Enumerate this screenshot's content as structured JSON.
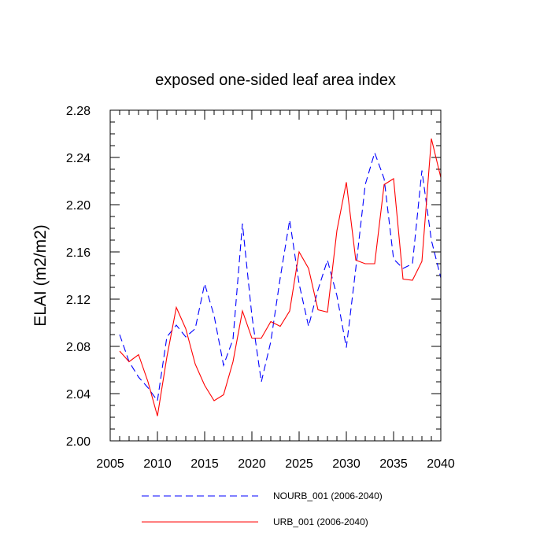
{
  "chart_data": {
    "type": "line",
    "title": "exposed one-sided leaf area index",
    "xlabel": "",
    "ylabel": "ELAI  (m2/m2)",
    "xlim": [
      2005,
      2040
    ],
    "ylim": [
      2.0,
      2.28
    ],
    "x_ticks": [
      "2005",
      "2010",
      "2015",
      "2020",
      "2025",
      "2030",
      "2035",
      "2040"
    ],
    "y_ticks": [
      "2.00",
      "2.04",
      "2.08",
      "2.12",
      "2.16",
      "2.20",
      "2.24",
      "2.28"
    ],
    "legend_position": "bottom",
    "x": [
      2006,
      2007,
      2008,
      2009,
      2010,
      2011,
      2012,
      2013,
      2014,
      2015,
      2016,
      2017,
      2018,
      2019,
      2020,
      2021,
      2022,
      2023,
      2024,
      2025,
      2026,
      2027,
      2028,
      2029,
      2030,
      2031,
      2032,
      2033,
      2034,
      2035,
      2036,
      2037,
      2038,
      2039,
      2040
    ],
    "series": [
      {
        "name": "NOURB_001 (2006-2040)",
        "color": "#0000ff",
        "dash": "dashed",
        "values": [
          2.09,
          2.067,
          2.054,
          2.045,
          2.034,
          2.088,
          2.098,
          2.088,
          2.095,
          2.133,
          2.106,
          2.064,
          2.086,
          2.184,
          2.106,
          2.05,
          2.084,
          2.138,
          2.187,
          2.133,
          2.097,
          2.128,
          2.153,
          2.123,
          2.079,
          2.146,
          2.217,
          2.244,
          2.222,
          2.154,
          2.146,
          2.15,
          2.229,
          2.17,
          2.138
        ]
      },
      {
        "name": "URB_001 (2006-2040)",
        "color": "#ff0000",
        "dash": "solid",
        "values": [
          2.076,
          2.067,
          2.073,
          2.05,
          2.021,
          2.071,
          2.113,
          2.095,
          2.065,
          2.047,
          2.034,
          2.039,
          2.067,
          2.11,
          2.087,
          2.087,
          2.101,
          2.097,
          2.11,
          2.16,
          2.146,
          2.111,
          2.109,
          2.178,
          2.219,
          2.153,
          2.15,
          2.15,
          2.217,
          2.222,
          2.137,
          2.136,
          2.152,
          2.256,
          2.223
        ]
      }
    ]
  }
}
